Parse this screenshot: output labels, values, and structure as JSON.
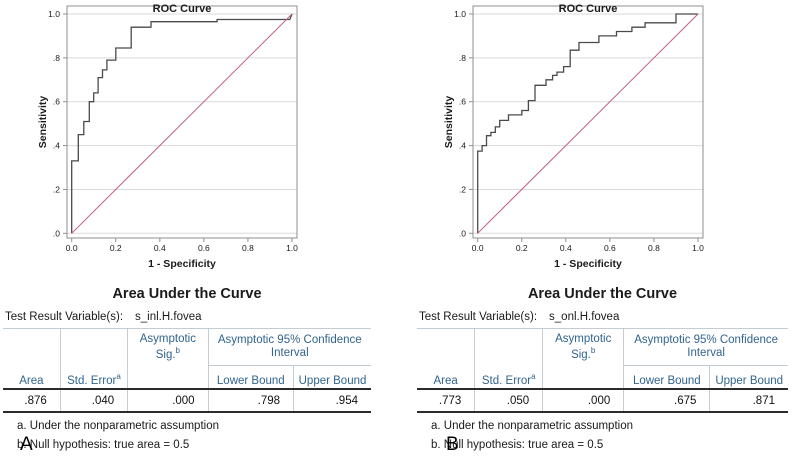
{
  "colors": {
    "header_blue": "#31648f",
    "grid": "#dadada",
    "frame": "#8f8f8f",
    "curve": "#4a4a4a",
    "diagonal": "#c4607a",
    "rule_dark": "#2b2b2b",
    "rule_light": "#c3cbd3",
    "text": "#1a1a1a"
  },
  "chart_data": [
    {
      "type": "line",
      "title": "ROC Curve",
      "xlabel": "1 - Specificity",
      "ylabel": "Sensitivity",
      "xlim": [
        0,
        1
      ],
      "ylim": [
        0,
        1
      ],
      "grid": "horizontal",
      "legend": "none",
      "xtick_values": [
        0,
        0.2,
        0.4,
        0.6,
        0.8,
        1.0
      ],
      "xtick_labels": [
        "0.0",
        "0.2",
        "0.4",
        "0.6",
        "0.8",
        "1.0"
      ],
      "ytick_values": [
        0,
        0.2,
        0.4,
        0.6,
        0.8,
        1.0
      ],
      "ytick_labels": [
        ".0",
        ".2",
        ".4",
        ".6",
        ".8",
        "1.0"
      ],
      "series": [
        {
          "name": "roc-curve-line",
          "color": "#4a4a4a",
          "width": 1.3,
          "step": true,
          "points": [
            [
              0,
              0
            ],
            [
              0,
              0.33
            ],
            [
              0.03,
              0.33
            ],
            [
              0.03,
              0.45
            ],
            [
              0.055,
              0.45
            ],
            [
              0.055,
              0.51
            ],
            [
              0.08,
              0.51
            ],
            [
              0.08,
              0.6
            ],
            [
              0.1,
              0.6
            ],
            [
              0.1,
              0.64
            ],
            [
              0.12,
              0.64
            ],
            [
              0.12,
              0.71
            ],
            [
              0.14,
              0.71
            ],
            [
              0.14,
              0.745
            ],
            [
              0.16,
              0.745
            ],
            [
              0.16,
              0.79
            ],
            [
              0.2,
              0.79
            ],
            [
              0.2,
              0.845
            ],
            [
              0.27,
              0.845
            ],
            [
              0.27,
              0.94
            ],
            [
              0.36,
              0.94
            ],
            [
              0.36,
              0.965
            ],
            [
              0.66,
              0.965
            ],
            [
              0.66,
              0.975
            ],
            [
              0.99,
              0.975
            ],
            [
              1,
              1
            ]
          ]
        },
        {
          "name": "reference-diagonal-line",
          "color": "#c4607a",
          "width": 1,
          "points": [
            [
              0,
              0
            ],
            [
              1,
              1
            ]
          ]
        }
      ]
    },
    {
      "type": "line",
      "title": "ROC Curve",
      "xlabel": "1 - Specificity",
      "ylabel": "Sensitivity",
      "xlim": [
        0,
        1
      ],
      "ylim": [
        0,
        1
      ],
      "grid": "horizontal",
      "legend": "none",
      "xtick_values": [
        0,
        0.2,
        0.4,
        0.6,
        0.8,
        1.0
      ],
      "xtick_labels": [
        "0.0",
        "0.2",
        "0.4",
        "0.6",
        "0.8",
        "1.0"
      ],
      "ytick_values": [
        0,
        0.2,
        0.4,
        0.6,
        0.8,
        1.0
      ],
      "ytick_labels": [
        ".0",
        ".2",
        ".4",
        ".6",
        ".8",
        "1.0"
      ],
      "series": [
        {
          "name": "roc-curve-line",
          "color": "#4a4a4a",
          "width": 1.3,
          "step": true,
          "points": [
            [
              0,
              0
            ],
            [
              0,
              0.375
            ],
            [
              0.02,
              0.375
            ],
            [
              0.02,
              0.4
            ],
            [
              0.04,
              0.4
            ],
            [
              0.04,
              0.445
            ],
            [
              0.06,
              0.445
            ],
            [
              0.06,
              0.46
            ],
            [
              0.08,
              0.46
            ],
            [
              0.08,
              0.485
            ],
            [
              0.1,
              0.485
            ],
            [
              0.1,
              0.515
            ],
            [
              0.14,
              0.515
            ],
            [
              0.14,
              0.54
            ],
            [
              0.2,
              0.54
            ],
            [
              0.2,
              0.56
            ],
            [
              0.23,
              0.56
            ],
            [
              0.23,
              0.605
            ],
            [
              0.26,
              0.605
            ],
            [
              0.26,
              0.675
            ],
            [
              0.31,
              0.675
            ],
            [
              0.31,
              0.7
            ],
            [
              0.34,
              0.7
            ],
            [
              0.34,
              0.72
            ],
            [
              0.36,
              0.72
            ],
            [
              0.36,
              0.735
            ],
            [
              0.39,
              0.735
            ],
            [
              0.39,
              0.76
            ],
            [
              0.42,
              0.76
            ],
            [
              0.42,
              0.835
            ],
            [
              0.46,
              0.835
            ],
            [
              0.46,
              0.87
            ],
            [
              0.55,
              0.87
            ],
            [
              0.55,
              0.9
            ],
            [
              0.63,
              0.9
            ],
            [
              0.63,
              0.92
            ],
            [
              0.7,
              0.92
            ],
            [
              0.7,
              0.94
            ],
            [
              0.76,
              0.94
            ],
            [
              0.76,
              0.96
            ],
            [
              0.9,
              0.96
            ],
            [
              0.9,
              1
            ],
            [
              1,
              1
            ]
          ]
        },
        {
          "name": "reference-diagonal-line",
          "color": "#c4607a",
          "width": 1,
          "points": [
            [
              0,
              0
            ],
            [
              1,
              1
            ]
          ]
        }
      ]
    }
  ],
  "tables": [
    {
      "title": "Area Under the Curve",
      "test_result_label": "Test Result Variable(s):",
      "variable": "s_inl.H.fovea",
      "headers": {
        "area": "Area",
        "std_error": "Std. Error",
        "std_error_sup": "a",
        "asymp_sig_line1": "Asymptotic",
        "asymp_sig_line2": "Sig.",
        "asymp_sig_sup": "b",
        "ci": "Asymptotic 95% Confidence Interval",
        "lower": "Lower Bound",
        "upper": "Upper Bound"
      },
      "values": {
        "area": ".876",
        "std_error": ".040",
        "sig": ".000",
        "lower": ".798",
        "upper": ".954"
      },
      "footnotes": [
        "a. Under the nonparametric assumption",
        "b. Null hypothesis: true area = 0.5"
      ],
      "panel_label": "A"
    },
    {
      "title": "Area Under the Curve",
      "test_result_label": "Test Result Variable(s):",
      "variable": "s_onl.H.fovea",
      "headers": {
        "area": "Area",
        "std_error": "Std. Error",
        "std_error_sup": "a",
        "asymp_sig_line1": "Asymptotic",
        "asymp_sig_line2": "Sig.",
        "asymp_sig_sup": "b",
        "ci": "Asymptotic 95% Confidence Interval",
        "lower": "Lower Bound",
        "upper": "Upper Bound"
      },
      "values": {
        "area": ".773",
        "std_error": ".050",
        "sig": ".000",
        "lower": ".675",
        "upper": ".871"
      },
      "footnotes": [
        "a. Under the nonparametric assumption",
        "b. Null hypothesis: true area = 0.5"
      ],
      "panel_label": "B"
    }
  ]
}
